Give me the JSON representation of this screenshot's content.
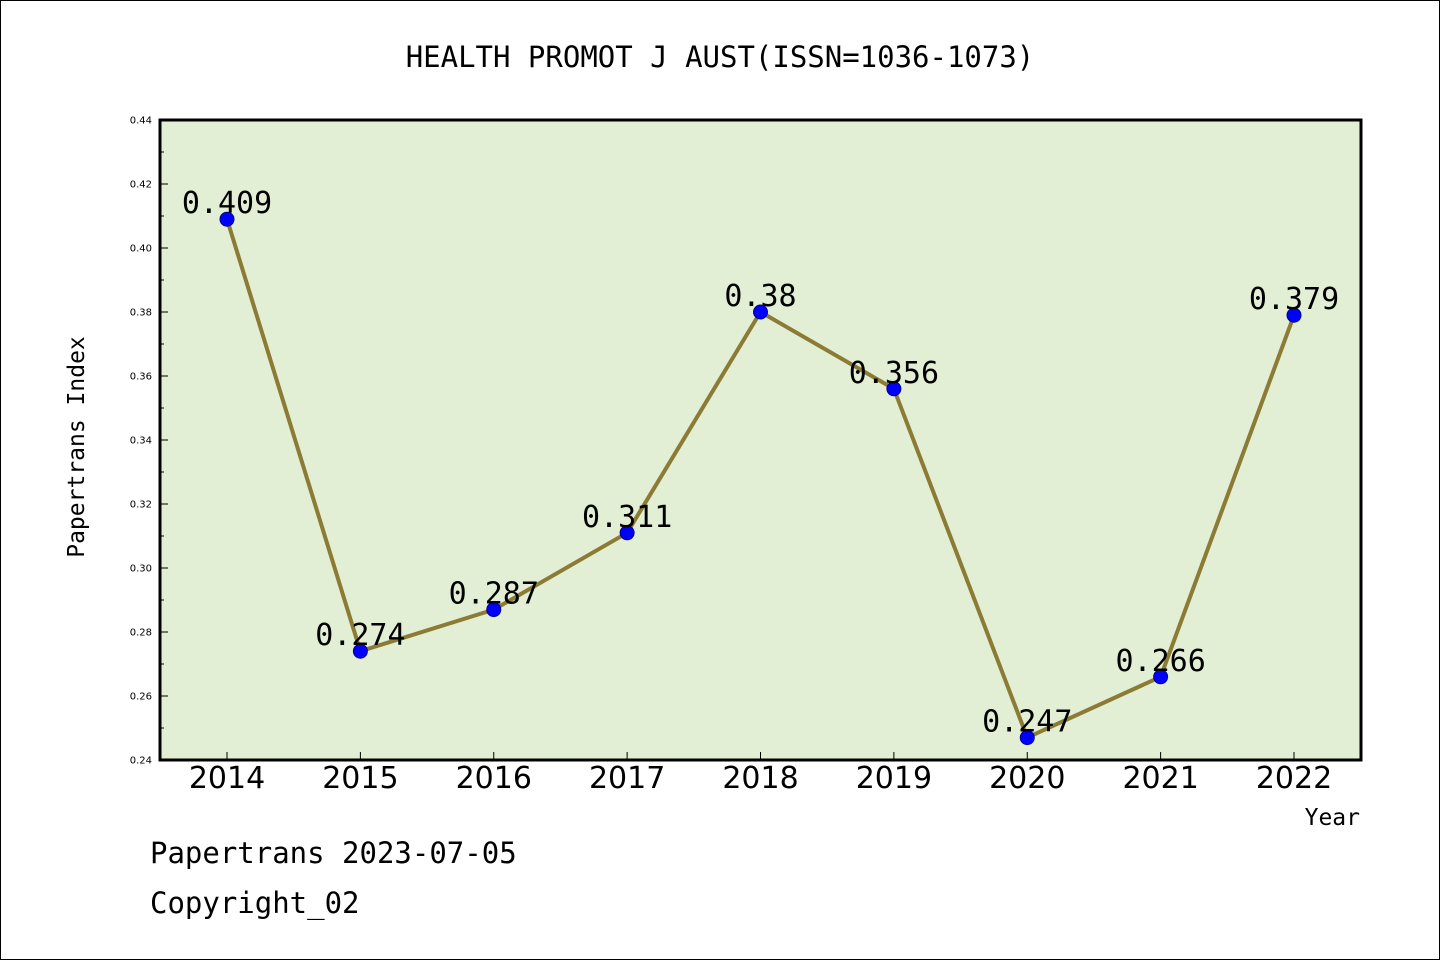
{
  "chart_data": {
    "type": "line",
    "title": "HEALTH PROMOT J AUST(ISSN=1036-1073)",
    "xlabel": "Year",
    "ylabel": "Papertrans Index",
    "categories": [
      "2014",
      "2015",
      "2016",
      "2017",
      "2018",
      "2019",
      "2020",
      "2021",
      "2022"
    ],
    "values": [
      0.409,
      0.274,
      0.287,
      0.311,
      0.38,
      0.356,
      0.247,
      0.266,
      0.379
    ],
    "value_labels": [
      "0.409",
      "0.274",
      "0.287",
      "0.311",
      "0.38",
      "0.356",
      "0.247",
      "0.266",
      "0.379"
    ],
    "ylim": [
      0.24,
      0.44
    ],
    "yticks": [
      0.24,
      0.26,
      0.28,
      0.3,
      0.32,
      0.34,
      0.36,
      0.38,
      0.4,
      0.42,
      0.44
    ],
    "ytick_labels": [
      "0.24",
      "0.26",
      "0.28",
      "0.30",
      "0.32",
      "0.34",
      "0.36",
      "0.38",
      "0.40",
      "0.42",
      "0.44"
    ],
    "grid": false,
    "colors": {
      "plot_background": "#e2efd4",
      "line": "#8b7b34",
      "marker": "#0000ff"
    }
  },
  "footer": {
    "source": "Papertrans 2023-07-05",
    "copyright": "Copyright_02"
  }
}
